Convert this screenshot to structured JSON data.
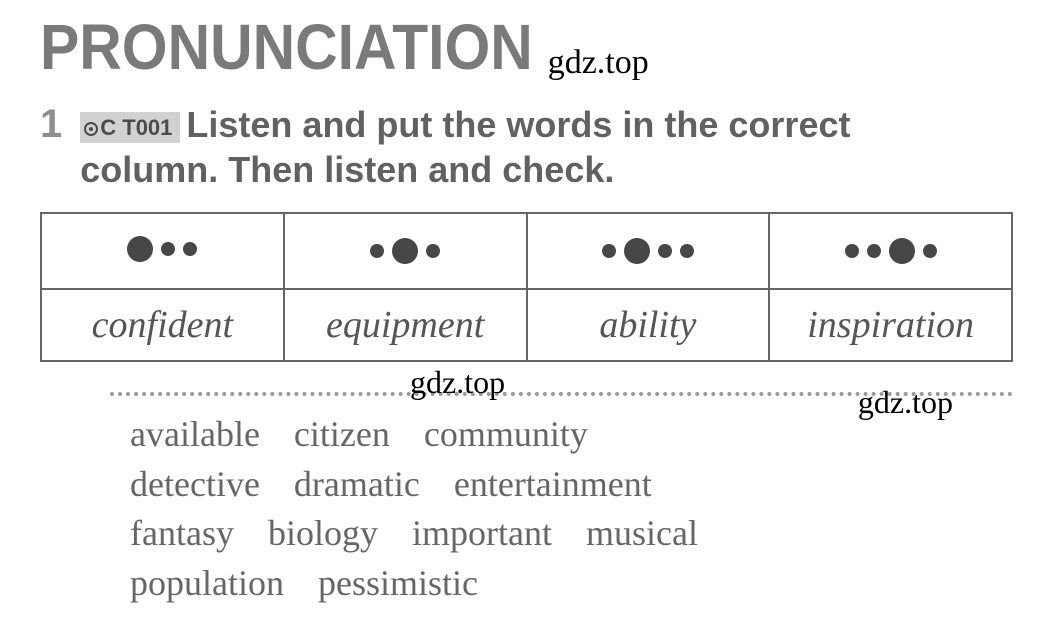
{
  "heading": "PRONUNCIATION",
  "watermark": "gdz.top",
  "exercise_number": "1",
  "track_badge": "C T001",
  "instruction_line1": "Listen and put the words in the correct",
  "instruction_line2": "column. Then listen and check.",
  "table": {
    "columns": [
      {
        "pattern": [
          "big",
          "small",
          "small"
        ],
        "example": "confident"
      },
      {
        "pattern": [
          "small",
          "big",
          "small"
        ],
        "example": "equipment"
      },
      {
        "pattern": [
          "small",
          "big",
          "small",
          "small"
        ],
        "example": "ability"
      },
      {
        "pattern": [
          "small",
          "small",
          "big",
          "small"
        ],
        "example": "inspiration"
      }
    ]
  },
  "word_bank": [
    [
      "available",
      "citizen",
      "community"
    ],
    [
      "detective",
      "dramatic",
      "entertainment"
    ],
    [
      "fantasy",
      "biology",
      "important",
      "musical"
    ],
    [
      "population",
      "pessimistic"
    ]
  ],
  "colors": {
    "heading_color": "#7a7a7a",
    "text_color": "#616161",
    "border_color": "#666666",
    "dot_color": "#474747",
    "badge_bg": "#d1d1d1",
    "wordbank_color": "#666666",
    "watermark_color": "#000000",
    "dotted_color": "#9a9a9a"
  },
  "typography": {
    "heading_fontsize": 64,
    "instruction_fontsize": 36,
    "example_fontsize": 38,
    "wordbank_fontsize": 36,
    "watermark_fontsize": 34
  }
}
